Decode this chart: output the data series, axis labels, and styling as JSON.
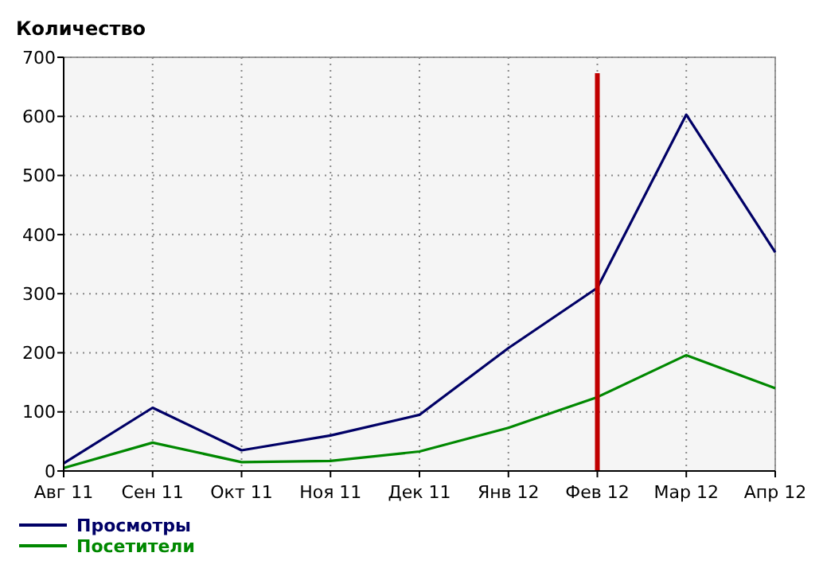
{
  "chart_data": {
    "type": "line",
    "ylabel": "Количество",
    "categories": [
      "Авг 11",
      "Сен 11",
      "Окт 11",
      "Ноя 11",
      "Дек 11",
      "Янв 12",
      "Фев 12",
      "Мар 12",
      "Апр 12"
    ],
    "series": [
      {
        "name": "Просмотры",
        "color": "#000066",
        "values": [
          13,
          107,
          35,
          60,
          95,
          208,
          310,
          603,
          370
        ]
      },
      {
        "name": "Посетители",
        "color": "#008800",
        "values": [
          5,
          48,
          15,
          17,
          33,
          73,
          125,
          196,
          140
        ]
      }
    ],
    "ylim": [
      0,
      700
    ],
    "yticks": [
      0,
      100,
      200,
      300,
      400,
      500,
      600,
      700
    ],
    "grid": true,
    "legend": "bottom left",
    "marker": "none",
    "line_style": "solid",
    "ref_lines": [
      {
        "axis": "x",
        "value": "Фев 12",
        "color": "#c00000"
      }
    ]
  }
}
